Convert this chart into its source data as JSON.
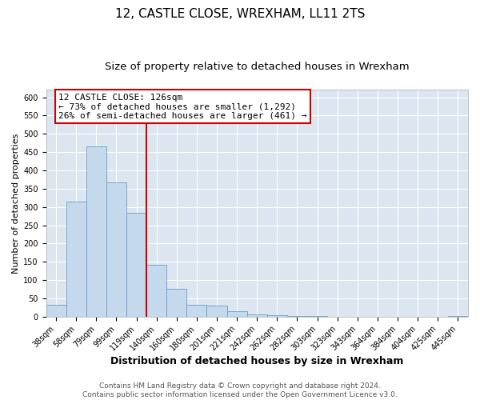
{
  "title": "12, CASTLE CLOSE, WREXHAM, LL11 2TS",
  "subtitle": "Size of property relative to detached houses in Wrexham",
  "xlabel": "Distribution of detached houses by size in Wrexham",
  "ylabel": "Number of detached properties",
  "bar_labels": [
    "38sqm",
    "58sqm",
    "79sqm",
    "99sqm",
    "119sqm",
    "140sqm",
    "160sqm",
    "180sqm",
    "201sqm",
    "221sqm",
    "242sqm",
    "262sqm",
    "282sqm",
    "303sqm",
    "323sqm",
    "343sqm",
    "364sqm",
    "384sqm",
    "404sqm",
    "425sqm",
    "445sqm"
  ],
  "bar_values": [
    32,
    315,
    465,
    367,
    283,
    142,
    75,
    32,
    29,
    15,
    5,
    3,
    1,
    1,
    0,
    0,
    0,
    0,
    0,
    0,
    2
  ],
  "bar_color": "#c5d9ed",
  "bar_edgecolor": "#6a9fc8",
  "vline_color": "#cc0000",
  "ylim": [
    0,
    620
  ],
  "yticks": [
    0,
    50,
    100,
    150,
    200,
    250,
    300,
    350,
    400,
    450,
    500,
    550,
    600
  ],
  "annotation_title": "12 CASTLE CLOSE: 126sqm",
  "annotation_line1": "← 73% of detached houses are smaller (1,292)",
  "annotation_line2": "26% of semi-detached houses are larger (461) →",
  "annotation_box_facecolor": "#ffffff",
  "annotation_box_edgecolor": "#cc0000",
  "footer_line1": "Contains HM Land Registry data © Crown copyright and database right 2024.",
  "footer_line2": "Contains public sector information licensed under the Open Government Licence v3.0.",
  "fig_background": "#ffffff",
  "plot_background": "#dce6f0",
  "grid_color": "#ffffff",
  "title_fontsize": 11,
  "subtitle_fontsize": 9.5,
  "xlabel_fontsize": 9,
  "ylabel_fontsize": 8,
  "tick_fontsize": 7,
  "annotation_fontsize": 8,
  "footer_fontsize": 6.5,
  "vline_position": 4.5
}
